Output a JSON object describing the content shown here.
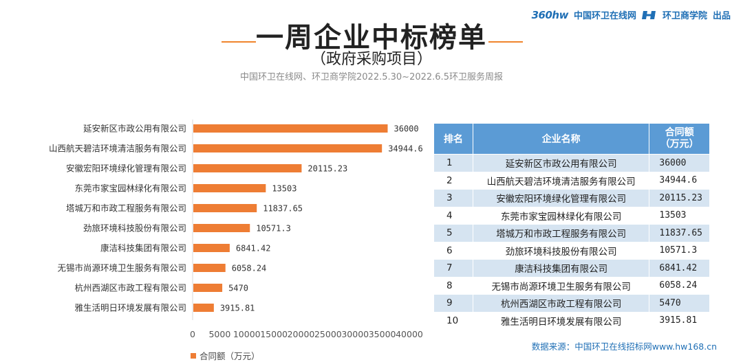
{
  "header": {
    "logo_360": "360hw",
    "brand_site": "中国环卫在线网",
    "brand_school": "环卫商学院",
    "brand_suffix": "出品",
    "title": "一周企业中标榜单",
    "subtitle": "（政府采购项目）",
    "source_line": "中国环卫在线网、环卫商学院2022.5.30~2022.6.5环卫服务周报"
  },
  "colors": {
    "bar": "#ee7d34",
    "table_header": "#5b9bd5",
    "table_stripe": "#d6e4f1",
    "accent_line": "#f0842b"
  },
  "chart_data": {
    "type": "bar",
    "orientation": "horizontal",
    "categories": [
      "延安新区市政公用有限公司",
      "山西航天碧洁环境清洁服务有限公司",
      "安徽宏阳环境绿化管理有限公司",
      "东莞市家宝园林绿化有限公司",
      "塔城万和市政工程服务有限公司",
      "劲旅环境科技股份有限公司",
      "康洁科技集团有限公司",
      "无锡市尚源环境卫生服务有限公司",
      "杭州西湖区市政工程有限公司",
      "雅生活明日环境发展有限公司"
    ],
    "values": [
      36000,
      34944.6,
      20115.23,
      13503,
      11837.65,
      10571.3,
      6841.42,
      6058.24,
      5470,
      3915.81
    ],
    "value_labels": [
      "36000",
      "34944.6",
      "20115.23",
      "13503",
      "11837.65",
      "10571.3",
      "6841.42",
      "6058.24",
      "5470",
      "3915.81"
    ],
    "xlim": [
      0,
      40000
    ],
    "ticks": [
      0,
      5000,
      10000,
      15000,
      20000,
      25000,
      30000,
      35000,
      40000
    ],
    "legend": "合同额（万元）",
    "legend_position": "bottom-left"
  },
  "table": {
    "headers": {
      "rank": "排名",
      "name": "企业名称",
      "amount_line1": "合同额",
      "amount_line2": "（万元）"
    },
    "rows": [
      {
        "rank": "1",
        "name": "延安新区市政公用有限公司",
        "amount": "36000"
      },
      {
        "rank": "2",
        "name": "山西航天碧洁环境清洁服务有限公司",
        "amount": "34944.6"
      },
      {
        "rank": "3",
        "name": "安徽宏阳环境绿化管理有限公司",
        "amount": "20115.23"
      },
      {
        "rank": "4",
        "name": "东莞市家宝园林绿化有限公司",
        "amount": "13503"
      },
      {
        "rank": "5",
        "name": "塔城万和市政工程服务有限公司",
        "amount": "11837.65"
      },
      {
        "rank": "6",
        "name": "劲旅环境科技股份有限公司",
        "amount": "10571.3"
      },
      {
        "rank": "7",
        "name": "康洁科技集团有限公司",
        "amount": "6841.42"
      },
      {
        "rank": "8",
        "name": "无锡市尚源环境卫生服务有限公司",
        "amount": "6058.24"
      },
      {
        "rank": "9",
        "name": "杭州西湖区市政工程有限公司",
        "amount": "5470"
      },
      {
        "rank": "10",
        "name": "雅生活明日环境发展有限公司",
        "amount": "3915.81"
      }
    ]
  },
  "footer": {
    "data_source": "数据来源：中国环卫在线招标网www.hw168.cn"
  }
}
